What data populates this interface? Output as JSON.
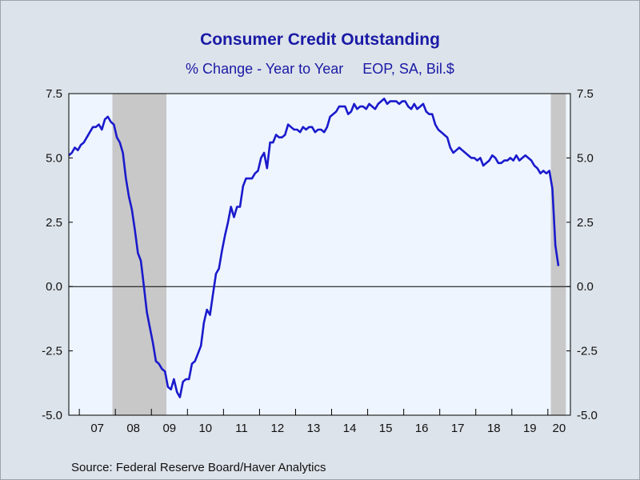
{
  "title": "Consumer Credit Outstanding",
  "subtitle_left": "% Change - Year to Year",
  "subtitle_right": "EOP, SA, Bil.$",
  "source": "Source:  Federal Reserve Board/Haver Analytics",
  "colors": {
    "line": "#1a1acc",
    "recession": "#c8c8c8",
    "plot_bg": "#eef5fe",
    "page_bg": "#dde3ea"
  },
  "chart_data": {
    "type": "line",
    "title": "Consumer Credit Outstanding",
    "subtitle": "% Change - Year to Year    EOP, SA, Bil.$",
    "xlabel": "",
    "ylabel": "",
    "xlim": [
      2006.708,
      2020.625
    ],
    "ylim": [
      -5.0,
      7.5
    ],
    "y_ticks": [
      "7.5",
      "5.0",
      "2.5",
      "0.0",
      "-2.5",
      "-5.0"
    ],
    "y_tick_values": [
      7.5,
      5.0,
      2.5,
      0.0,
      -2.5,
      -5.0
    ],
    "x_tick_labels": [
      "07",
      "08",
      "09",
      "10",
      "11",
      "12",
      "13",
      "14",
      "15",
      "16",
      "17",
      "18",
      "19",
      "20"
    ],
    "x_tick_years": [
      2007,
      2008,
      2009,
      2010,
      2011,
      2012,
      2013,
      2014,
      2015,
      2016,
      2017,
      2018,
      2019,
      2020
    ],
    "grid": false,
    "dual_y_axis": true,
    "zero_line": true,
    "shaded_periods": [
      {
        "label": "recession",
        "start": 2007.917,
        "end": 2009.417
      },
      {
        "label": "recession",
        "start": 2020.083,
        "end": 2020.5
      }
    ],
    "series": [
      {
        "color": "#1a1acc",
        "x": [
          2006.708,
          2006.792,
          2006.875,
          2006.958,
          2007.042,
          2007.125,
          2007.208,
          2007.292,
          2007.375,
          2007.458,
          2007.542,
          2007.625,
          2007.708,
          2007.792,
          2007.875,
          2007.958,
          2008.042,
          2008.125,
          2008.208,
          2008.292,
          2008.375,
          2008.458,
          2008.542,
          2008.625,
          2008.708,
          2008.792,
          2008.875,
          2008.958,
          2009.042,
          2009.125,
          2009.208,
          2009.292,
          2009.375,
          2009.458,
          2009.542,
          2009.625,
          2009.708,
          2009.792,
          2009.875,
          2009.958,
          2010.042,
          2010.125,
          2010.208,
          2010.292,
          2010.375,
          2010.458,
          2010.542,
          2010.625,
          2010.708,
          2010.792,
          2010.875,
          2010.958,
          2011.042,
          2011.125,
          2011.208,
          2011.292,
          2011.375,
          2011.458,
          2011.542,
          2011.625,
          2011.708,
          2011.792,
          2011.875,
          2011.958,
          2012.042,
          2012.125,
          2012.208,
          2012.292,
          2012.375,
          2012.458,
          2012.542,
          2012.625,
          2012.708,
          2012.792,
          2012.875,
          2012.958,
          2013.042,
          2013.125,
          2013.208,
          2013.292,
          2013.375,
          2013.458,
          2013.542,
          2013.625,
          2013.708,
          2013.792,
          2013.875,
          2013.958,
          2014.042,
          2014.125,
          2014.208,
          2014.292,
          2014.375,
          2014.458,
          2014.542,
          2014.625,
          2014.708,
          2014.792,
          2014.875,
          2014.958,
          2015.042,
          2015.125,
          2015.208,
          2015.292,
          2015.375,
          2015.458,
          2015.542,
          2015.625,
          2015.708,
          2015.792,
          2015.875,
          2015.958,
          2016.042,
          2016.125,
          2016.208,
          2016.292,
          2016.375,
          2016.458,
          2016.542,
          2016.625,
          2016.708,
          2016.792,
          2016.875,
          2016.958,
          2017.042,
          2017.125,
          2017.208,
          2017.292,
          2017.375,
          2017.458,
          2017.542,
          2017.625,
          2017.708,
          2017.792,
          2017.875,
          2017.958,
          2018.042,
          2018.125,
          2018.208,
          2018.292,
          2018.375,
          2018.458,
          2018.542,
          2018.625,
          2018.708,
          2018.792,
          2018.875,
          2018.958,
          2019.042,
          2019.125,
          2019.208,
          2019.292,
          2019.375,
          2019.458,
          2019.542,
          2019.625,
          2019.708,
          2019.792,
          2019.875,
          2019.958,
          2020.042,
          2020.125,
          2020.208,
          2020.292
        ],
        "y": [
          5.1,
          5.2,
          5.4,
          5.3,
          5.5,
          5.6,
          5.8,
          6.0,
          6.2,
          6.2,
          6.3,
          6.1,
          6.5,
          6.6,
          6.4,
          6.3,
          5.8,
          5.6,
          5.2,
          4.2,
          3.5,
          3.0,
          2.2,
          1.3,
          1.0,
          0.0,
          -1.0,
          -1.6,
          -2.2,
          -2.9,
          -3.0,
          -3.2,
          -3.3,
          -3.9,
          -4.0,
          -3.6,
          -4.1,
          -4.3,
          -3.7,
          -3.6,
          -3.6,
          -3.0,
          -2.9,
          -2.6,
          -2.3,
          -1.4,
          -0.9,
          -1.1,
          -0.3,
          0.5,
          0.7,
          1.4,
          2.0,
          2.5,
          3.1,
          2.7,
          3.1,
          3.1,
          3.9,
          4.2,
          4.2,
          4.2,
          4.4,
          4.5,
          5.0,
          5.2,
          4.6,
          5.6,
          5.6,
          5.9,
          5.8,
          5.8,
          5.9,
          6.3,
          6.2,
          6.1,
          6.1,
          6.0,
          6.2,
          6.1,
          6.2,
          6.2,
          6.0,
          6.1,
          6.1,
          6.0,
          6.2,
          6.6,
          6.7,
          6.8,
          7.0,
          7.0,
          7.0,
          6.7,
          6.8,
          7.1,
          6.9,
          7.0,
          7.0,
          6.9,
          7.1,
          7.0,
          6.9,
          7.1,
          7.2,
          7.3,
          7.1,
          7.2,
          7.2,
          7.2,
          7.1,
          7.2,
          7.2,
          7.0,
          6.9,
          7.1,
          6.9,
          7.0,
          7.1,
          6.8,
          6.7,
          6.7,
          6.3,
          6.1,
          6.0,
          5.9,
          5.8,
          5.4,
          5.2,
          5.3,
          5.4,
          5.3,
          5.2,
          5.1,
          5.0,
          5.0,
          4.9,
          5.0,
          4.7,
          4.8,
          4.9,
          5.1,
          5.0,
          4.8,
          4.8,
          4.9,
          4.9,
          5.0,
          4.9,
          5.1,
          4.9,
          5.0,
          5.1,
          5.0,
          4.9,
          4.7,
          4.6,
          4.4,
          4.5,
          4.4,
          4.5,
          3.8,
          1.6,
          0.8
        ]
      }
    ]
  }
}
